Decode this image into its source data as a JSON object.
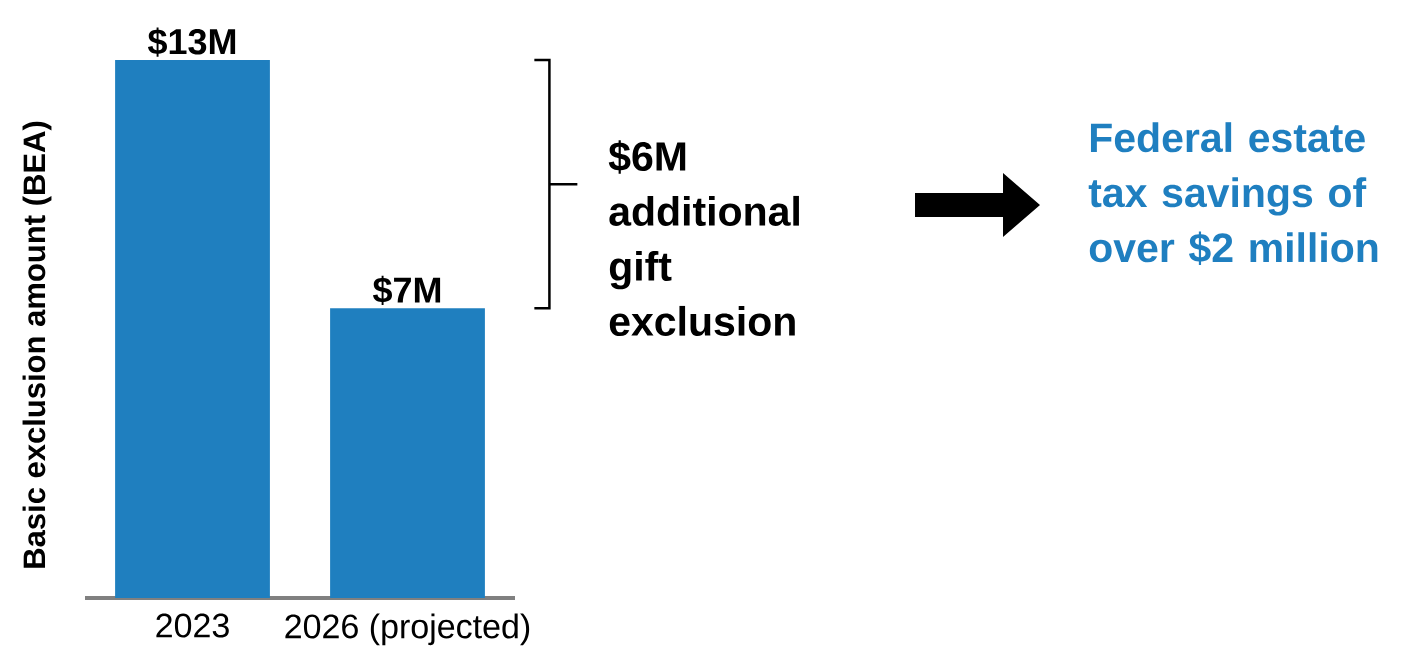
{
  "chart_data": {
    "type": "bar",
    "ylabel": "Basic exclusion amount (BEA)",
    "categories": [
      "2023",
      "2026 (projected)"
    ],
    "values": [
      13,
      7
    ],
    "value_labels": [
      "$13M",
      "$7M"
    ],
    "color": "#1f7fbf",
    "annotations": [
      "$6M additional gift exclusion",
      "Federal estate tax savings of over $2 million"
    ]
  }
}
